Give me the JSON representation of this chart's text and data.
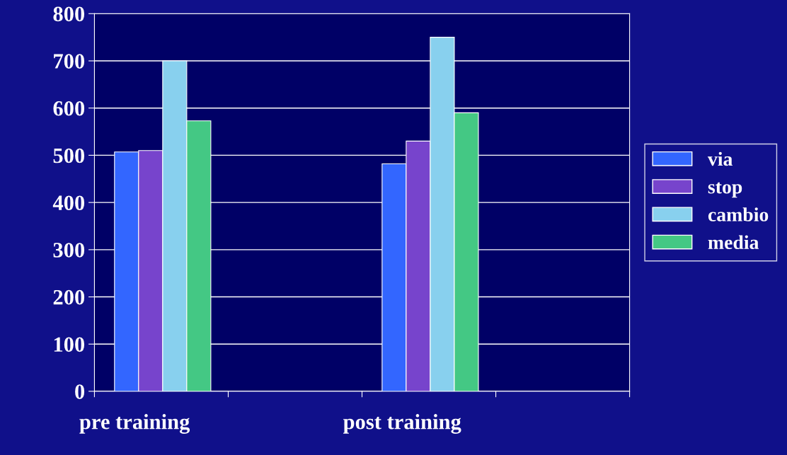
{
  "chart_data": {
    "type": "bar",
    "categories": [
      "pre training",
      null,
      "post training",
      null
    ],
    "series": [
      {
        "name": "via",
        "color": "#3366ff",
        "values": [
          507,
          null,
          482,
          null
        ]
      },
      {
        "name": "stop",
        "color": "#7744cc",
        "values": [
          510,
          null,
          530,
          null
        ]
      },
      {
        "name": "cambio",
        "color": "#88d0ee",
        "values": [
          700,
          null,
          750,
          null
        ]
      },
      {
        "name": "media",
        "color": "#44c884",
        "values": [
          573,
          null,
          590,
          null
        ]
      }
    ],
    "ylim": [
      0,
      800
    ],
    "yticks": [
      0,
      100,
      200,
      300,
      400,
      500,
      600,
      700,
      800
    ],
    "grid": "y",
    "legend": "right"
  }
}
